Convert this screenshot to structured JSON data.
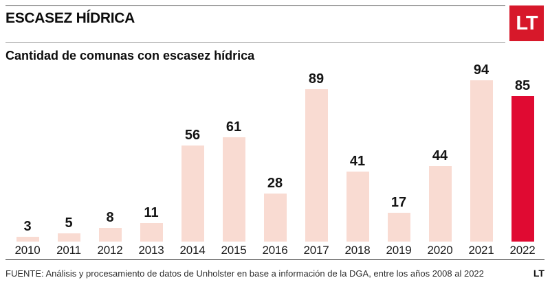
{
  "header": {
    "kicker": "ESCASEZ HÍDRICA",
    "logo_text": "LT"
  },
  "chart_data": {
    "type": "bar",
    "title": "Cantidad de comunas con escasez hídrica",
    "categories": [
      "2010",
      "2011",
      "2012",
      "2013",
      "2014",
      "2015",
      "2016",
      "2017",
      "2018",
      "2019",
      "2020",
      "2021",
      "2022"
    ],
    "values": [
      3,
      5,
      8,
      11,
      56,
      61,
      28,
      89,
      41,
      17,
      44,
      94,
      85
    ],
    "value_labels_shown": true,
    "highlight_category": "2022",
    "xlabel": "",
    "ylabel": "",
    "ylim": [
      0,
      100
    ],
    "grid": false,
    "legend": "none",
    "bar_color": "#f9dbd2",
    "highlight_color": "#e00a32",
    "label_color": "#141414"
  },
  "footer": {
    "source": "FUENTE: Análisis y procesamiento de datos de Unholster en base a información de la DGA, entre los años 2008 al 2022",
    "logo_text": "LT"
  },
  "colors": {
    "logo_bg": "#d7182a",
    "logo_fg": "#ffffff",
    "background": "#ffffff"
  }
}
